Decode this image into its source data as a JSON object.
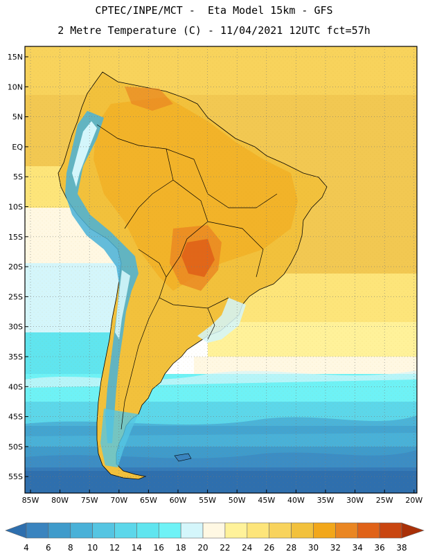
{
  "header": {
    "line1": "CPTEC/INPE/MCT -  Eta Model 15km - GFS",
    "line2": "2 Metre Temperature (C) - 11/04/2021 12UTC fct=57h"
  },
  "axes": {
    "lat_labels": [
      "15N",
      "10N",
      "5N",
      "EQ",
      "5S",
      "10S",
      "15S",
      "20S",
      "25S",
      "30S",
      "35S",
      "40S",
      "45S",
      "50S",
      "55S"
    ],
    "lon_labels": [
      "85W",
      "80W",
      "75W",
      "70W",
      "65W",
      "60W",
      "55W",
      "50W",
      "45W",
      "40W",
      "35W",
      "30W",
      "25W",
      "20W"
    ]
  },
  "colorbar": {
    "labels": [
      "4",
      "6",
      "8",
      "10",
      "12",
      "14",
      "16",
      "18",
      "20",
      "22",
      "24",
      "26",
      "28",
      "30",
      "32",
      "34",
      "36",
      "38"
    ],
    "colors": [
      "#2e6fae",
      "#3a84bf",
      "#3f9bcb",
      "#49b1d8",
      "#55c5e2",
      "#5cd7ea",
      "#60e5ef",
      "#6ef2f6",
      "#d4f6fb",
      "#fff8e3",
      "#fff29a",
      "#fde57a",
      "#f8d35c",
      "#f2c13c",
      "#f2a71a",
      "#ea8622",
      "#e06218",
      "#c94510",
      "#a93008"
    ]
  },
  "map": {
    "ocean_bands": [
      {
        "lat_from": 15,
        "lat_to": 5,
        "temp_class": "26"
      },
      {
        "lat_from": 5,
        "lat_to": -20,
        "temp_class": "28"
      },
      {
        "lat_from": -20,
        "lat_to": -32,
        "temp_class": "24"
      },
      {
        "lat_from": -32,
        "lat_to": -38,
        "temp_class": "22"
      },
      {
        "lat_from": -38,
        "lat_to": -45,
        "temp_class": "16"
      },
      {
        "lat_from": -45,
        "lat_to": -50,
        "temp_class": "12"
      },
      {
        "lat_from": -50,
        "lat_to": -58,
        "temp_class": "8"
      }
    ],
    "hot_spot": {
      "lon": -57,
      "lat": -19,
      "temp_class": "34"
    }
  }
}
